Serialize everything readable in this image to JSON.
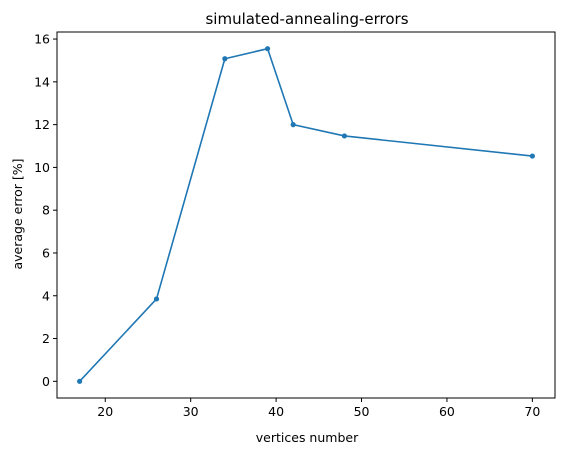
{
  "chart_data": {
    "type": "line",
    "title": "simulated-annealing-errors",
    "xlabel": "vertices number",
    "ylabel": "average error [%]",
    "xlim": [
      14.35,
      72.65
    ],
    "ylim": [
      -0.78,
      16.33
    ],
    "xticks": [
      20,
      30,
      40,
      50,
      60,
      70
    ],
    "yticks": [
      0,
      2,
      4,
      6,
      8,
      10,
      12,
      14,
      16
    ],
    "grid": false,
    "series": [
      {
        "x": [
          17,
          26,
          34,
          39,
          42,
          48,
          70
        ],
        "y": [
          0.0,
          3.85,
          15.08,
          15.55,
          12.0,
          11.47,
          10.53
        ],
        "color": "#1f77b4",
        "marker": "circle"
      }
    ]
  }
}
